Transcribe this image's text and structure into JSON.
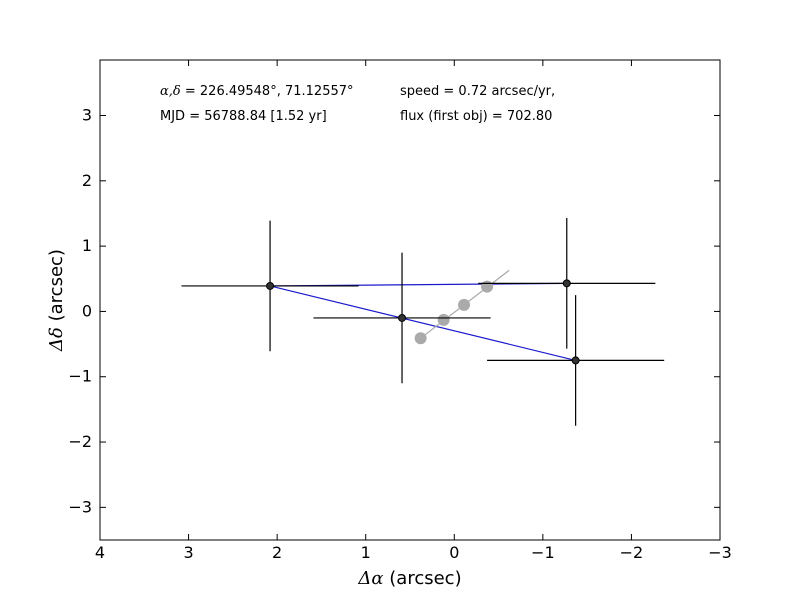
{
  "chart_data": {
    "type": "scatter",
    "xlabel_sym": "Δα",
    "xlabel_unit": " (arcsec)",
    "ylabel_sym": "Δδ",
    "ylabel_unit": " (arcsec)",
    "xlim": [
      4,
      -3
    ],
    "ylim": [
      -3.5,
      3.85
    ],
    "x_ticks": [
      {
        "value": 4,
        "label": "4"
      },
      {
        "value": 3,
        "label": "3"
      },
      {
        "value": 2,
        "label": "2"
      },
      {
        "value": 1,
        "label": "1"
      },
      {
        "value": 0,
        "label": "0"
      },
      {
        "value": -1,
        "label": "−1"
      },
      {
        "value": -2,
        "label": "−2"
      },
      {
        "value": -3,
        "label": "−3"
      }
    ],
    "y_ticks": [
      {
        "value": 3,
        "label": "3"
      },
      {
        "value": 2,
        "label": "2"
      },
      {
        "value": 1,
        "label": "1"
      },
      {
        "value": 0,
        "label": "0"
      },
      {
        "value": -1,
        "label": "−1"
      },
      {
        "value": -2,
        "label": "−2"
      },
      {
        "value": -3,
        "label": "−3"
      }
    ],
    "observations": [
      {
        "x": 2.08,
        "y": 0.39,
        "xerr": 1.0,
        "yerr": 1.0
      },
      {
        "x": 0.59,
        "y": -0.1,
        "xerr": 1.0,
        "yerr": 1.0
      },
      {
        "x": -1.27,
        "y": 0.43,
        "xerr": 1.0,
        "yerr": 1.0
      },
      {
        "x": -1.37,
        "y": -0.75,
        "xerr": 1.0,
        "yerr": 1.0
      }
    ],
    "blue_segments": [
      [
        {
          "x": 2.08,
          "y": 0.39
        },
        {
          "x": -1.27,
          "y": 0.43
        }
      ],
      [
        {
          "x": 2.08,
          "y": 0.39
        },
        {
          "x": -1.37,
          "y": -0.75
        }
      ]
    ],
    "model_points": [
      {
        "x": 0.38,
        "y": -0.41
      },
      {
        "x": 0.12,
        "y": -0.13
      },
      {
        "x": -0.11,
        "y": 0.1
      },
      {
        "x": -0.37,
        "y": 0.38
      }
    ],
    "model_line": [
      {
        "x": 0.38,
        "y": -0.41
      },
      {
        "x": -0.62,
        "y": 0.63
      }
    ],
    "colors": {
      "observation": "#000000",
      "blue_line": "#1a1acc",
      "model": "#aaaaaa"
    },
    "annotations": {
      "coords_sym": "α,δ",
      "coords_value": " = 226.49548°, 71.12557°",
      "mjd": "MJD = 56788.84 [1.52 yr]",
      "speed": "speed = 0.72 arcsec/yr,",
      "flux": "flux (first obj) = 702.80"
    }
  }
}
